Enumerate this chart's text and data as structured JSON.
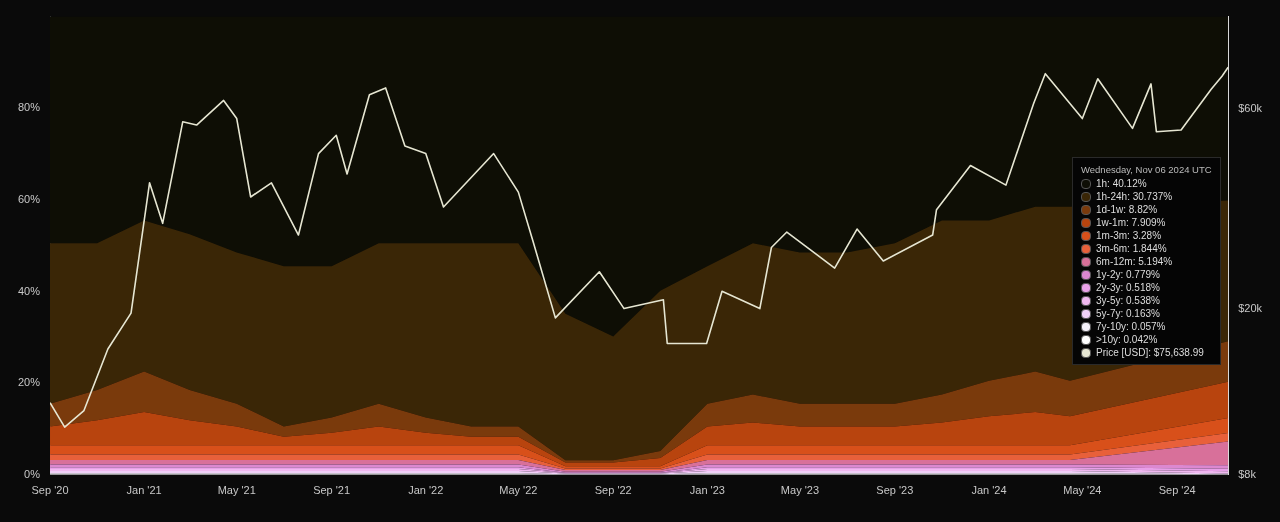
{
  "chart_data": {
    "type": "area",
    "stacked": true,
    "x": [
      "2020-09-01",
      "2020-11-01",
      "2021-01-01",
      "2021-03-01",
      "2021-05-01",
      "2021-07-01",
      "2021-09-01",
      "2021-11-01",
      "2022-01-01",
      "2022-03-01",
      "2022-05-01",
      "2022-07-01",
      "2022-09-01",
      "2022-11-01",
      "2023-01-01",
      "2023-03-01",
      "2023-05-01",
      "2023-07-01",
      "2023-09-01",
      "2023-11-01",
      "2024-01-01",
      "2024-03-01",
      "2024-04-15",
      "2024-11-06"
    ],
    "xlim": [
      "2020-09-01",
      "2024-11-06"
    ],
    "xticks": [
      {
        "value": "2020-09-01",
        "label": "Sep '20"
      },
      {
        "value": "2021-01-01",
        "label": "Jan '21"
      },
      {
        "value": "2021-05-01",
        "label": "May '21"
      },
      {
        "value": "2021-09-01",
        "label": "Sep '21"
      },
      {
        "value": "2022-01-01",
        "label": "Jan '22"
      },
      {
        "value": "2022-05-01",
        "label": "May '22"
      },
      {
        "value": "2022-09-01",
        "label": "Sep '22"
      },
      {
        "value": "2023-01-01",
        "label": "Jan '23"
      },
      {
        "value": "2023-05-01",
        "label": "May '23"
      },
      {
        "value": "2023-09-01",
        "label": "Sep '23"
      },
      {
        "value": "2024-01-01",
        "label": "Jan '24"
      },
      {
        "value": "2024-05-01",
        "label": "May '24"
      },
      {
        "value": "2024-09-01",
        "label": "Sep '24"
      }
    ],
    "ylim": [
      0,
      100
    ],
    "yticks": [
      {
        "value": 0,
        "label": "0%"
      },
      {
        "value": 20,
        "label": "20%"
      },
      {
        "value": 40,
        "label": "40%"
      },
      {
        "value": 60,
        "label": "60%"
      },
      {
        "value": 80,
        "label": "80%"
      }
    ],
    "log": "y2",
    "y2lim": [
      8000,
      100000
    ],
    "y2ticks": [
      {
        "value": 8000,
        "label": "$8k"
      },
      {
        "value": 20000,
        "label": "$20k"
      },
      {
        "value": 60000,
        "label": "$60k"
      }
    ],
    "annotations": [
      "Wednesday, Nov 06 2024 UTC",
      "1h: 40.12%",
      "1h-24h: 30.737%",
      "1d-1w: 8.82%",
      "1w-1m: 7.909%",
      "1m-3m: 3.28%",
      "3m-6m: 1.844%",
      "6m-12m: 5.194%",
      "1y-2y: 0.779%",
      "2y-3y: 0.518%",
      "3y-5y: 0.538%",
      "5y-7y: 0.163%",
      "7y-10y: 0.057%",
      ">10y: 0.042%",
      "Price [USD]: $75,638.99"
    ],
    "series": [
      {
        "color": "#ffffff",
        "values": [
          0.05,
          0.05,
          0.05,
          0.05,
          0.05,
          0.05,
          0.05,
          0.05,
          0.05,
          0.05,
          0.05,
          0.02,
          0.02,
          0.02,
          0.05,
          0.05,
          0.05,
          0.05,
          0.05,
          0.05,
          0.05,
          0.05,
          0.05,
          0.042
        ]
      },
      {
        "color": "#f4f0fa",
        "values": [
          0.3,
          0.3,
          0.3,
          0.3,
          0.3,
          0.3,
          0.3,
          0.3,
          0.3,
          0.3,
          0.3,
          0.1,
          0.1,
          0.1,
          0.3,
          0.3,
          0.3,
          0.3,
          0.3,
          0.3,
          0.3,
          0.3,
          0.3,
          0.057
        ]
      },
      {
        "color": "#f0d0f8",
        "values": [
          0.5,
          0.5,
          0.5,
          0.5,
          0.5,
          0.5,
          0.5,
          0.5,
          0.5,
          0.5,
          0.5,
          0.15,
          0.15,
          0.15,
          0.5,
          0.5,
          0.5,
          0.5,
          0.5,
          0.5,
          0.5,
          0.5,
          0.5,
          0.163
        ]
      },
      {
        "color": "#f0b8f0",
        "values": [
          0.4,
          0.4,
          0.4,
          0.4,
          0.4,
          0.4,
          0.4,
          0.4,
          0.4,
          0.4,
          0.4,
          0.1,
          0.1,
          0.1,
          0.4,
          0.4,
          0.4,
          0.4,
          0.4,
          0.4,
          0.4,
          0.4,
          0.4,
          0.538
        ]
      },
      {
        "color": "#e8a0e8",
        "values": [
          0.4,
          0.4,
          0.4,
          0.4,
          0.4,
          0.4,
          0.4,
          0.4,
          0.4,
          0.4,
          0.4,
          0.1,
          0.1,
          0.1,
          0.4,
          0.4,
          0.4,
          0.4,
          0.4,
          0.4,
          0.4,
          0.4,
          0.4,
          0.518
        ]
      },
      {
        "color": "#dc88d0",
        "values": [
          0.6,
          0.6,
          0.6,
          0.6,
          0.6,
          0.6,
          0.6,
          0.6,
          0.6,
          0.6,
          0.6,
          0.2,
          0.2,
          0.2,
          0.6,
          0.6,
          0.6,
          0.6,
          0.6,
          0.6,
          0.6,
          0.6,
          0.6,
          0.779
        ]
      },
      {
        "color": "#d8709a",
        "values": [
          1.0,
          1.0,
          1.0,
          1.0,
          1.0,
          1.0,
          1.0,
          1.0,
          1.0,
          1.0,
          1.0,
          0.4,
          0.4,
          0.4,
          1.0,
          1.0,
          1.0,
          1.0,
          1.0,
          1.0,
          1.0,
          1.0,
          1.0,
          5.194
        ]
      },
      {
        "color": "#e8603a",
        "values": [
          1.2,
          1.2,
          1.2,
          1.2,
          1.2,
          1.2,
          1.2,
          1.2,
          1.2,
          1.2,
          1.2,
          0.3,
          0.3,
          0.3,
          1.2,
          1.2,
          1.2,
          1.2,
          1.2,
          1.2,
          1.2,
          1.2,
          1.2,
          1.844
        ]
      },
      {
        "color": "#d8501a",
        "values": [
          2.0,
          2.0,
          2.0,
          2.0,
          2.0,
          2.0,
          2.0,
          2.0,
          2.0,
          2.0,
          2.0,
          0.5,
          0.5,
          0.5,
          2.0,
          2.0,
          2.0,
          2.0,
          2.0,
          2.0,
          2.0,
          2.0,
          2.0,
          3.28
        ]
      },
      {
        "color": "#b8440e",
        "values": [
          4.08,
          5.43,
          7.23,
          5.43,
          4.08,
          1.83,
          2.73,
          4.08,
          2.73,
          1.83,
          1.83,
          0.8,
          0.8,
          1.8,
          4.08,
          4.98,
          4.08,
          4.08,
          4.08,
          4.98,
          6.33,
          7.23,
          6.33,
          7.909
        ]
      },
      {
        "color": "#7a3a0c",
        "values": [
          4.99,
          6.64,
          8.84,
          6.64,
          4.99,
          2.24,
          3.34,
          4.99,
          3.34,
          2.24,
          2.24,
          0.5,
          0.5,
          1.5,
          4.99,
          6.09,
          4.99,
          4.99,
          4.99,
          6.09,
          7.74,
          8.84,
          7.74,
          8.82
        ]
      },
      {
        "color": "#3a2606",
        "values": [
          35,
          32,
          33,
          34,
          33,
          35,
          33,
          35,
          38,
          40,
          40,
          32,
          27,
          35,
          30,
          33,
          33,
          33,
          35,
          38,
          35,
          36,
          38,
          30.737
        ]
      },
      {
        "color": "#0e0e05",
        "values": [
          49.48,
          49.48,
          44.48,
          47.48,
          51.48,
          54.48,
          54.48,
          49.48,
          49.48,
          49.48,
          49.48,
          64.83,
          69.83,
          59.83,
          54.48,
          49.48,
          51.48,
          51.48,
          49.48,
          44.48,
          44.48,
          41.48,
          41.48,
          40.12
        ]
      },
      {
        "type": "line",
        "axis": "y2",
        "color": "#e6e6d2",
        "x": [
          "2020-09-01",
          "2020-09-20",
          "2020-10-15",
          "2020-11-15",
          "2020-12-15",
          "2021-01-08",
          "2021-01-25",
          "2021-02-20",
          "2021-03-10",
          "2021-04-14",
          "2021-05-01",
          "2021-05-19",
          "2021-06-15",
          "2021-07-20",
          "2021-08-15",
          "2021-09-07",
          "2021-09-21",
          "2021-10-20",
          "2021-11-10",
          "2021-12-05",
          "2022-01-01",
          "2022-01-24",
          "2022-03-30",
          "2022-05-01",
          "2022-05-20",
          "2022-06-18",
          "2022-08-14",
          "2022-09-15",
          "2022-11-05",
          "2022-11-10",
          "2022-12-31",
          "2023-01-20",
          "2023-03-10",
          "2023-03-25",
          "2023-04-14",
          "2023-06-15",
          "2023-07-14",
          "2023-08-17",
          "2023-10-20",
          "2023-10-25",
          "2023-12-08",
          "2024-01-23",
          "2024-02-28",
          "2024-03-14",
          "2024-05-01",
          "2024-05-21",
          "2024-07-05",
          "2024-07-29",
          "2024-08-05",
          "2024-09-06",
          "2024-10-15",
          "2024-10-29",
          "2024-11-06"
        ],
        "values": [
          11900,
          10400,
          11400,
          16000,
          19500,
          40000,
          32000,
          56000,
          55000,
          63000,
          57000,
          37000,
          40000,
          30000,
          47000,
          52000,
          42000,
          65000,
          67500,
          49000,
          47000,
          35000,
          47000,
          38000,
          29000,
          19000,
          24500,
          20000,
          21000,
          16500,
          16500,
          22000,
          20000,
          28000,
          30500,
          25000,
          31000,
          26000,
          30000,
          34500,
          44000,
          39500,
          62000,
          73000,
          57000,
          71000,
          54000,
          69000,
          53000,
          53500,
          67000,
          72000,
          75638.99
        ]
      }
    ]
  }
}
